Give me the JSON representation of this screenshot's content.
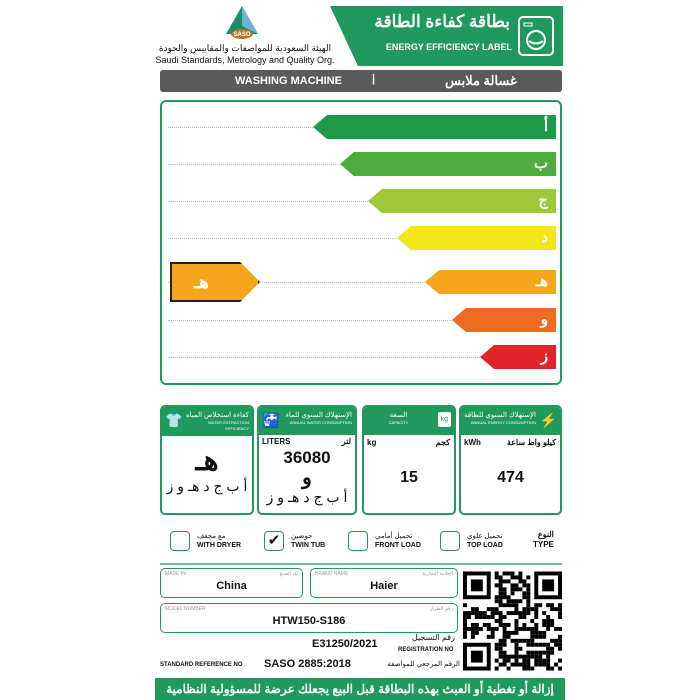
{
  "header": {
    "org_logo_text": "SASO",
    "org_name_ar": "الهيئة السعودية للمواصفات والمقاييس والجودة",
    "org_name_en": "Saudi Standards, Metrology and Quality Org.",
    "title_ar": "بطاقة كفاءة الطاقة",
    "title_en": "ENERGY EFFICIENCY LABEL"
  },
  "product_bar": {
    "en": "WASHING MACHINE",
    "separator": "|",
    "ar": "غسالة ملابس"
  },
  "rating": {
    "classes": [
      {
        "label": "أ",
        "color": "#1f9a4a"
      },
      {
        "label": "ب",
        "color": "#4cad3c"
      },
      {
        "label": "ج",
        "color": "#9cc83a"
      },
      {
        "label": "د",
        "color": "#f1e619"
      },
      {
        "label": "هـ",
        "color": "#f7a51d"
      },
      {
        "label": "و",
        "color": "#ef6b23"
      },
      {
        "label": "ز",
        "color": "#e3232a"
      }
    ],
    "current": "هـ",
    "current_color": "#f7a51d"
  },
  "boxes": {
    "water_extraction": {
      "title_ar": "كفاءة استخلاص المياه",
      "title_en": "WATER EXTRACTION EFFICIENCY",
      "value": "هـ",
      "scale": "أ ب ج د هـ و ز"
    },
    "water": {
      "title_ar": "الإستهلاك السنوي للماء",
      "title_en": "ANNUAL WATER CONSUMPTION",
      "unit_en": "LITERS",
      "unit_ar": "لتر",
      "value": "36080",
      "grade": "و",
      "scale": "أ ب ج د هـ و ز"
    },
    "capacity": {
      "title_ar": "السعة",
      "title_en": "CAPACITY",
      "unit_en": "kg",
      "unit_ar": "كجم",
      "value": "15",
      "icon_text": "kg"
    },
    "energy": {
      "title_ar": "الإستهلاك السنوي للطاقة",
      "title_en": "ANNUAL ENERGY CONSUMPTION",
      "unit_en": "kWh",
      "unit_ar": "كيلو واط ساعة",
      "value": "474"
    }
  },
  "type": {
    "label_ar": "النوع",
    "label_en": "TYPE",
    "options": [
      {
        "ar": "تحميل علوي",
        "en": "TOP LOAD",
        "checked": false
      },
      {
        "ar": "تحميل أمامي",
        "en": "FRONT LOAD",
        "checked": false
      },
      {
        "ar": "حوضين",
        "en": "TWIN TUB",
        "checked": true
      },
      {
        "ar": "مع مجفف",
        "en": "WITH DRYER",
        "checked": false
      }
    ]
  },
  "details": {
    "made_in_label_en": "MADE IN",
    "made_in_label_ar": "بلد الصنع",
    "made_in": "China",
    "brand_label_en": "BRAND NAME",
    "brand_label_ar": "العلامة التجارية",
    "brand": "Haier",
    "model_label_en": "MODEL NUMBER",
    "model_label_ar": "رقم الطراز",
    "model": "HTW150-S186",
    "registration_label_ar": "رقم التسجيل",
    "registration_label_en": "REGISTRATION NO",
    "registration": "E31250/2021",
    "standard_label_en": "STANDARD REFERENCE NO",
    "standard_label_ar": "الرقم المرجعي للمواصفة",
    "standard": "SASO 2885:2018"
  },
  "footer": {
    "warning": "إزالة أو تغطية أو العبث بهذه البطاقة قبل البيع يجعلك عرضة للمسؤولية النظامية"
  }
}
